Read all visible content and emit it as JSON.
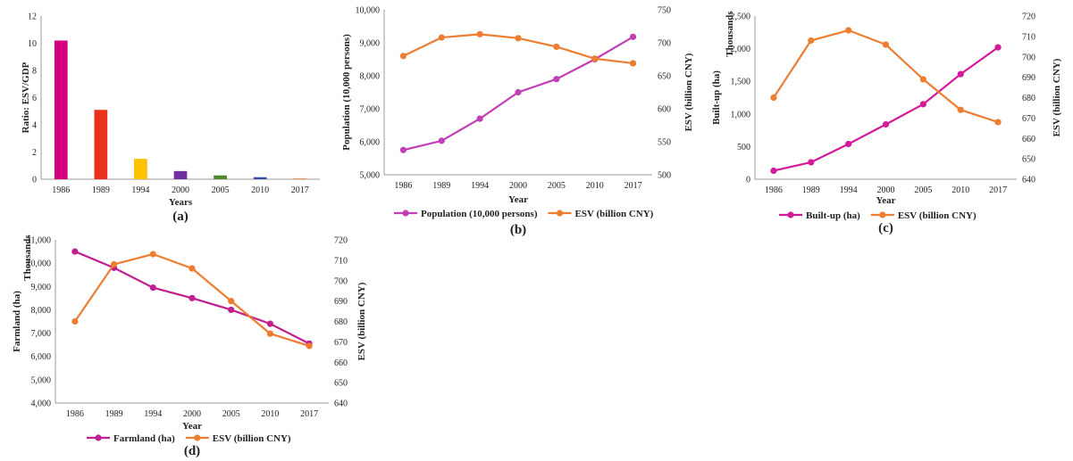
{
  "chart_data": [
    {
      "type": "bar",
      "panel_label": "(a)",
      "categories": [
        "1986",
        "1989",
        "1994",
        "2000",
        "2005",
        "2010",
        "2017"
      ],
      "values": [
        10.2,
        5.1,
        1.5,
        0.6,
        0.28,
        0.15,
        0.05
      ],
      "colors": [
        "#d6007f",
        "#e8321e",
        "#ffc000",
        "#7030a0",
        "#4f8a2a",
        "#3a4fa3",
        "#e87722"
      ],
      "xlabel": "Years",
      "ylabel": "Ratio: ESV/GDP",
      "ylim": [
        0,
        12
      ],
      "yticks": [
        "0",
        "2",
        "4",
        "6",
        "8",
        "10",
        "12"
      ],
      "grid": false
    },
    {
      "type": "line",
      "panel_label": "(b)",
      "categories": [
        "1986",
        "1989",
        "1994",
        "2000",
        "2005",
        "2010",
        "2017"
      ],
      "series": [
        {
          "name": "Population (10,000 persons)",
          "axis": "left",
          "color": "#c23fb5",
          "values": [
            5750,
            6030,
            6700,
            7500,
            7900,
            8500,
            9180
          ]
        },
        {
          "name": "ESV (billion CNY)",
          "axis": "right",
          "color": "#ed7d31",
          "values": [
            680,
            708,
            713,
            707,
            694,
            676,
            669
          ]
        }
      ],
      "xlabel": "Year",
      "ylabel": "Population (10,000 persons)",
      "ylabel_right": "ESV (billion CNY)",
      "ylim": [
        5000,
        10000
      ],
      "ylim_right": [
        500,
        750
      ],
      "yticks": [
        "5,000",
        "6,000",
        "7,000",
        "8,000",
        "9,000",
        "10,000"
      ],
      "yticks_right": [
        "500",
        "550",
        "600",
        "650",
        "700",
        "750"
      ],
      "legend_position": "bottom",
      "grid": false
    },
    {
      "type": "line",
      "panel_label": "(c)",
      "categories": [
        "1986",
        "1989",
        "1994",
        "2000",
        "2005",
        "2010",
        "2017"
      ],
      "series": [
        {
          "name": "Built-up (ha)",
          "axis": "left",
          "color": "#d31a99",
          "values": [
            130,
            260,
            540,
            840,
            1150,
            1610,
            2020
          ]
        },
        {
          "name": "ESV (billion CNY)",
          "axis": "right",
          "color": "#ed7d31",
          "values": [
            680,
            708,
            713,
            706,
            689,
            674,
            668
          ]
        }
      ],
      "xlabel": "Year",
      "ylabel": "Built-up (ha)",
      "ylabel_unit": "Thousands",
      "ylabel_right": "ESV (billion CNY)",
      "ylim": [
        0,
        2500
      ],
      "ylim_right": [
        640,
        720
      ],
      "yticks": [
        "0",
        "500",
        "1,000",
        "1,500",
        "2,000",
        "2,500"
      ],
      "yticks_right": [
        "640",
        "650",
        "660",
        "670",
        "680",
        "690",
        "700",
        "710",
        "720"
      ],
      "legend_position": "bottom",
      "grid": false
    },
    {
      "type": "line",
      "panel_label": "(d)",
      "categories": [
        "1986",
        "1989",
        "1994",
        "2000",
        "2005",
        "2010",
        "2017"
      ],
      "series": [
        {
          "name": "Farmland (ha)",
          "axis": "left",
          "color": "#c01f8f",
          "values": [
            10500,
            9800,
            8950,
            8500,
            8000,
            7400,
            6550
          ]
        },
        {
          "name": "ESV (billion CNY)",
          "axis": "right",
          "color": "#ed7d31",
          "values": [
            680,
            708,
            713,
            706,
            690,
            674,
            668
          ]
        }
      ],
      "xlabel": "Year",
      "ylabel": "Farmland (ha)",
      "ylabel_unit": "Thousands",
      "ylabel_right": "ESV (billion CNY)",
      "ylim": [
        4000,
        11000
      ],
      "ylim_right": [
        640,
        720
      ],
      "yticks": [
        "4,000",
        "5,000",
        "6,000",
        "7,000",
        "8,000",
        "9,000",
        "10,000",
        "11,000"
      ],
      "yticks_right": [
        "640",
        "650",
        "660",
        "670",
        "680",
        "690",
        "700",
        "710",
        "720"
      ],
      "legend_position": "bottom",
      "grid": false
    }
  ]
}
